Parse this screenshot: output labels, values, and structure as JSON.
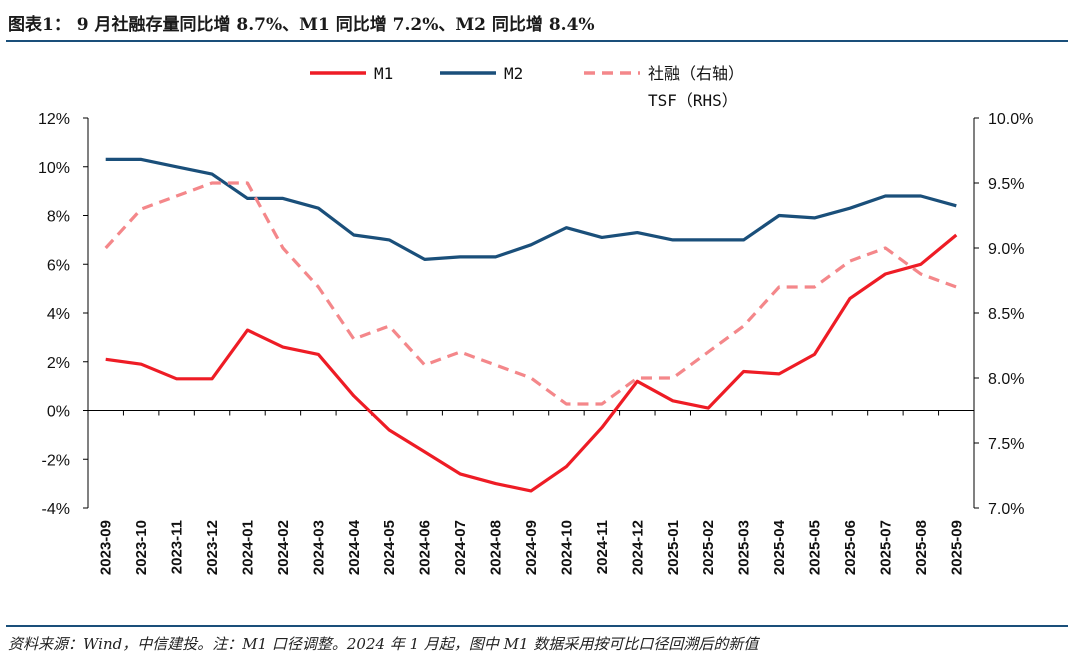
{
  "title": "图表1： 9 月社融存量同比增 8.7%、M1 同比增 7.2%、M2 同比增 8.4%",
  "source": "资料来源：Wind，中信建投。注：M1 口径调整。2024 年 1 月起，图中 M1 数据采用按可比口径回溯后的新值",
  "colors": {
    "m1": "#ee1c25",
    "m2": "#1a4f7a",
    "tsf": "#f4878a",
    "rule": "#1a4f7a"
  },
  "chart_data": {
    "type": "line",
    "categories": [
      "2023-09",
      "2023-10",
      "2023-11",
      "2023-12",
      "2024-01",
      "2024-02",
      "2024-03",
      "2024-04",
      "2024-05",
      "2024-06",
      "2024-07",
      "2024-08",
      "2024-09",
      "2024-10",
      "2024-11",
      "2024-12",
      "2025-01",
      "2025-02",
      "2025-03",
      "2025-04",
      "2025-05",
      "2025-06",
      "2025-07",
      "2025-08",
      "2025-09"
    ],
    "series": [
      {
        "name": "M1",
        "axis": "left",
        "style": "solid",
        "values": [
          2.1,
          1.9,
          1.3,
          1.3,
          3.3,
          2.6,
          2.3,
          0.6,
          -0.8,
          -1.7,
          -2.6,
          -3.0,
          -3.3,
          -2.3,
          -0.7,
          1.2,
          0.4,
          0.1,
          1.6,
          1.5,
          2.3,
          4.6,
          5.6,
          6.0,
          7.2
        ]
      },
      {
        "name": "M2",
        "axis": "left",
        "style": "solid",
        "values": [
          10.3,
          10.3,
          10.0,
          9.7,
          8.7,
          8.7,
          8.3,
          7.2,
          7.0,
          6.2,
          6.3,
          6.3,
          6.8,
          7.5,
          7.1,
          7.3,
          7.0,
          7.0,
          7.0,
          8.0,
          7.9,
          8.3,
          8.8,
          8.8,
          8.4
        ]
      },
      {
        "name": "社融（右轴）",
        "name2": "TSF（RHS）",
        "axis": "right",
        "style": "dashed",
        "values": [
          9.0,
          9.3,
          9.4,
          9.5,
          9.5,
          9.0,
          8.7,
          8.3,
          8.4,
          8.1,
          8.2,
          8.1,
          8.0,
          7.8,
          7.8,
          8.0,
          8.0,
          8.2,
          8.4,
          8.7,
          8.7,
          8.9,
          9.0,
          8.8,
          8.7
        ]
      }
    ],
    "y_left": {
      "min": -4,
      "max": 12,
      "step": 2,
      "tick_labels": [
        "-4%",
        "-2%",
        "0%",
        "2%",
        "4%",
        "6%",
        "8%",
        "10%",
        "12%"
      ]
    },
    "y_right": {
      "min": 7.0,
      "max": 10.0,
      "step": 0.5,
      "tick_labels": [
        "7.0%",
        "7.5%",
        "8.0%",
        "8.5%",
        "9.0%",
        "9.5%",
        "10.0%"
      ]
    },
    "legend": [
      "M1",
      "M2",
      "社融（右轴）",
      "TSF（RHS）"
    ],
    "legend_position": "top-center"
  }
}
